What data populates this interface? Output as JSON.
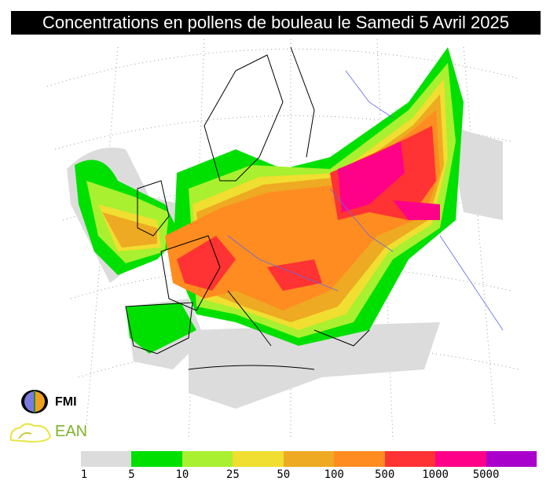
{
  "title": "Concentrations en pollens de bouleau le Samedi 5 Avril 2025",
  "legend": {
    "colors": [
      "#dcdcdc",
      "#00e000",
      "#a8f030",
      "#f0de30",
      "#eeaa22",
      "#ff8c20",
      "#ff3333",
      "#ff0088",
      "#aa00cc"
    ],
    "labels": [
      "1",
      "5",
      "10",
      "25",
      "50",
      "100",
      "500",
      "1000",
      "5000"
    ]
  },
  "logos": {
    "fmi": "FMI",
    "ean": "EAN"
  },
  "map": {
    "region": "Europe",
    "pollen": "bouleau"
  }
}
